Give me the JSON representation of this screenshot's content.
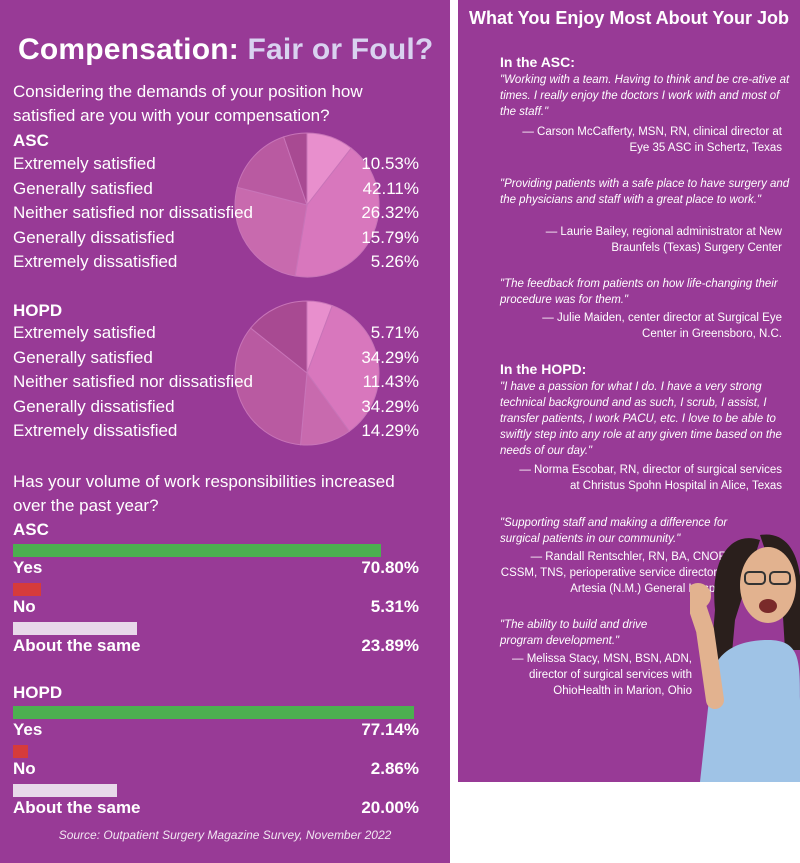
{
  "left": {
    "title_main": "Compensation:",
    "title_accent": "Fair or Foul?",
    "question1": "Considering the demands of your position how satisfied are you with your compensation?",
    "question2": "Has your volume of work responsibilities increased over the past year?",
    "source": "Source: Outpatient Surgery Magazine Survey, November 2022"
  },
  "colors": {
    "background": "#983a96",
    "pie_slice_colors": [
      "#e88fcd",
      "#d877bd",
      "#c86aae",
      "#b95aa1",
      "#a84a92"
    ],
    "bar_yes": "#4caf50",
    "bar_no": "#d63b3b",
    "bar_same": "#e8d8ea"
  },
  "chart_data": [
    {
      "type": "pie",
      "title": "ASC",
      "categories": [
        "Extremely satisfied",
        "Generally satisfied",
        "Neither satisfied nor dissatisfied",
        "Generally dissatisfied",
        "Extremely dissatisfied"
      ],
      "values": [
        10.53,
        42.11,
        26.32,
        15.79,
        5.26
      ],
      "labels": [
        "10.53%",
        "42.11%",
        "26.32%",
        "15.79%",
        "5.26%"
      ]
    },
    {
      "type": "pie",
      "title": "HOPD",
      "categories": [
        "Extremely satisfied",
        "Generally satisfied",
        "Neither satisfied nor dissatisfied",
        "Generally dissatisfied",
        "Extremely dissatisfied"
      ],
      "values": [
        5.71,
        34.29,
        11.43,
        34.29,
        14.29
      ],
      "labels": [
        "5.71%",
        "34.29%",
        "11.43%",
        "34.29%",
        "14.29%"
      ]
    },
    {
      "type": "bar",
      "title": "ASC",
      "categories": [
        "Yes",
        "No",
        "About the same"
      ],
      "values": [
        70.8,
        5.31,
        23.89
      ],
      "labels": [
        "70.80%",
        "5.31%",
        "23.89%"
      ]
    },
    {
      "type": "bar",
      "title": "HOPD",
      "categories": [
        "Yes",
        "No",
        "About the same"
      ],
      "values": [
        77.14,
        2.86,
        20.0
      ],
      "labels": [
        "77.14%",
        "2.86%",
        "20.00%"
      ]
    }
  ],
  "right": {
    "title": "What You Enjoy Most About Your Job",
    "asc_heading": "In the ASC:",
    "hopd_heading": "In the HOPD:",
    "quotes": [
      {
        "text": "\"Working with a team. Having to think and be cre-ative at times. I really enjoy the doctors I work with and most of the staff.\"",
        "attribution": "— Carson McCafferty, MSN, RN, clinical director at Eye 35 ASC in Schertz, Texas"
      },
      {
        "text": "\"Providing patients with a safe place to have surgery and the physicians and staff with a great place to work.\"",
        "attribution": "— Laurie Bailey, regional administrator at New Braunfels (Texas) Surgery Center"
      },
      {
        "text": "\"The feedback from patients on how life-changing their procedure was for them.\"",
        "attribution": "— Julie Maiden, center director at Surgical Eye Center in Greensboro, N.C."
      },
      {
        "text": "\"I have a passion for what I do. I have a very strong technical background and as such, I scrub, I assist, I transfer patients, I work PACU, etc. I love to be able to swiftly step into any role at any given time based on the needs of our day.\"",
        "attribution": "— Norma Escobar, RN, director of surgical services at Christus Spohn Hospital in Alice, Texas"
      },
      {
        "text": "\"Supporting staff and making a difference for surgical patients in our community.\"",
        "attribution": "— Randall Rentschler, RN, BA, CNOR, CSSM, TNS, perioperative service director at Artesia (N.M.) General Hospital"
      },
      {
        "text": "\"The ability to build and drive program development.\"",
        "attribution": "— Melissa Stacy, MSN, BSN, ADN, director of surgical services with OhioHealth in Marion, Ohio"
      }
    ]
  }
}
